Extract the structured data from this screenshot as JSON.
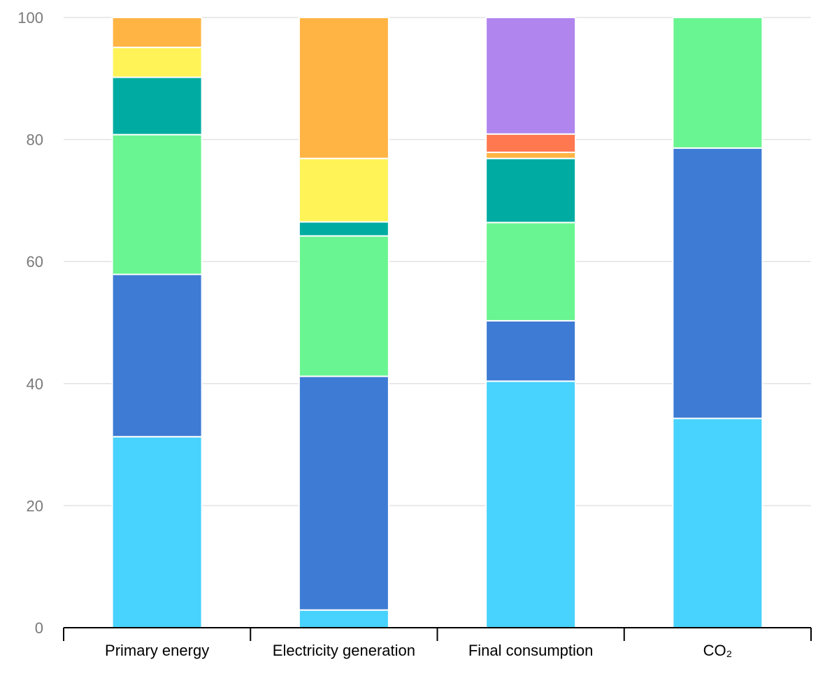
{
  "chart_data": {
    "type": "bar",
    "stacked": true,
    "title": "",
    "xlabel": "",
    "ylabel": "",
    "ylim": [
      0,
      100
    ],
    "yticks": [
      "0",
      "20",
      "40",
      "60",
      "80",
      "100"
    ],
    "grid": true,
    "legend": "none",
    "categories": [
      "Primary energy",
      "Electricity generation",
      "Final consumption",
      "CO₂"
    ],
    "series": [
      {
        "color": "#48d2fe",
        "values": [
          31.3,
          2.9,
          40.4,
          34.3
        ]
      },
      {
        "color": "#3d7bd4",
        "values": [
          26.6,
          38.3,
          9.9,
          44.3
        ]
      },
      {
        "color": "#69f591",
        "values": [
          22.9,
          23.0,
          16.1,
          21.4
        ]
      },
      {
        "color": "#00aca1",
        "values": [
          9.4,
          2.3,
          10.5,
          0
        ]
      },
      {
        "color": "#fff358",
        "values": [
          4.9,
          10.4,
          0,
          0
        ]
      },
      {
        "color": "#ffb444",
        "values": [
          4.9,
          23.1,
          1.0,
          0
        ]
      },
      {
        "color": "#ff7850",
        "values": [
          0,
          0,
          3.0,
          0
        ]
      },
      {
        "color": "#b085ee",
        "values": [
          0,
          0,
          19.1,
          0
        ]
      }
    ]
  }
}
